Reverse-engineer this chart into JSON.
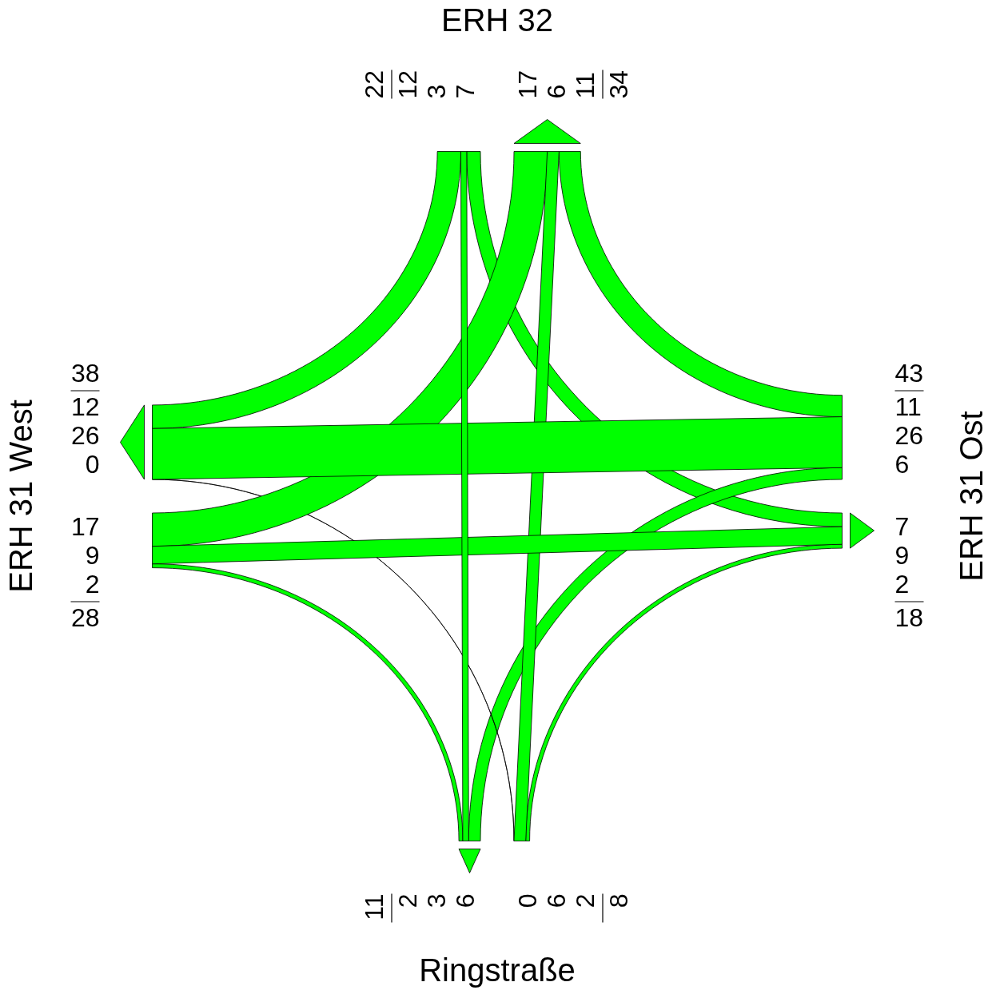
{
  "chart_data": {
    "type": "other",
    "categories": [
      "ERH 32",
      "ERH 31 Ost",
      "Ringstraße",
      "ERH 31 West"
    ],
    "series": [
      {
        "color": "#00ff00",
        "values": [
          null,
          7,
          3,
          12
        ]
      },
      {
        "color": "#00ff00",
        "values": [
          11,
          null,
          6,
          26
        ]
      },
      {
        "color": "#00ff00",
        "values": [
          6,
          2,
          null,
          0
        ]
      },
      {
        "color": "#00ff00",
        "values": [
          17,
          9,
          2,
          null
        ]
      },
      {
        "color": "#00ff00",
        "values": [
          null,
          11,
          6,
          17
        ]
      },
      {
        "color": "#00ff00",
        "values": [
          7,
          null,
          2,
          9
        ]
      },
      {
        "color": "#00ff00",
        "values": [
          3,
          6,
          null,
          2
        ]
      },
      {
        "color": "#00ff00",
        "values": [
          12,
          26,
          0,
          null
        ]
      }
    ],
    "totals": [
      [
        "22",
        "34"
      ],
      [
        "43",
        "18"
      ],
      [
        "8",
        "11"
      ],
      [
        "28",
        "38"
      ]
    ],
    "data_labels": true
  }
}
